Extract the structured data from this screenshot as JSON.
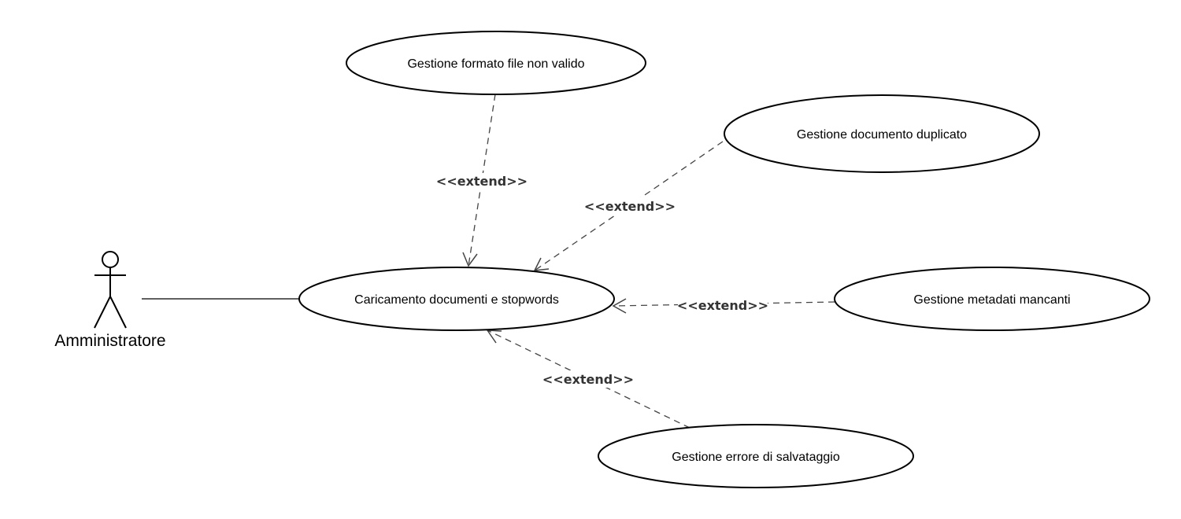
{
  "actor": {
    "name": "Amministratore"
  },
  "use_cases": {
    "main": "Caricamento documenti e stopwords",
    "formato": "Gestione formato file non valido",
    "duplicato": "Gestione documento duplicato",
    "metadati": "Gestione metadati mancanti",
    "errore": "Gestione errore di salvataggio"
  },
  "relations": {
    "formato": "<<extend>>",
    "duplicato": "<<extend>>",
    "metadati": "<<extend>>",
    "errore": "<<extend>>"
  },
  "colors": {
    "line": "#000000",
    "dashed": "#444444",
    "stereotype_text": "#333333",
    "background": "#ffffff"
  }
}
